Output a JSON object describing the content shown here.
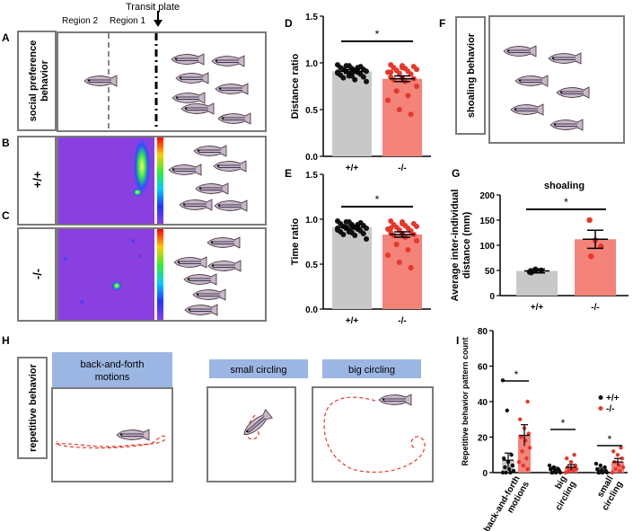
{
  "panels": {
    "A": "A",
    "B": "B",
    "C": "C",
    "D": "D",
    "E": "E",
    "F": "F",
    "G": "G",
    "H": "H",
    "I": "I"
  },
  "left": {
    "region2": "Region 2",
    "region1": "Region 1",
    "transit_plate": "Transit plate",
    "row_a_label": "social preference behavior",
    "row_b_label": "+/+",
    "row_c_label": "-/-"
  },
  "shoaling_box_label": "shoaling behavior",
  "repetitive": {
    "row_label": "repetitive behavior",
    "headers": [
      "back-and-forth\nmotions",
      "small circling",
      "big circling"
    ]
  },
  "colors": {
    "wt_bar": "#c8c8c8",
    "ko_bar": "#f4837a",
    "wt_point": "#111111",
    "ko_point": "#e8362a",
    "header_fill": "#9bb6e3",
    "heatmap_bg": "#8a3fe0"
  },
  "chart_data": [
    {
      "id": "D",
      "type": "bar",
      "title": "",
      "ylabel": "Distance ratio",
      "categories": [
        "+/+",
        "-/-"
      ],
      "ylim": [
        0,
        1.5
      ],
      "yticks": [
        "0.0",
        "0.5",
        "1.0",
        "1.5"
      ],
      "series": [
        {
          "values": [
            0.91,
            0.83
          ],
          "errors": [
            0.02,
            0.03
          ]
        }
      ],
      "points": [
        [
          0.98,
          0.97,
          0.96,
          0.95,
          0.94,
          0.93,
          0.93,
          0.92,
          0.91,
          0.91,
          0.9,
          0.89,
          0.88,
          0.88,
          0.87,
          0.86,
          0.85,
          0.84,
          0.82,
          0.8,
          0.97,
          0.95,
          0.9,
          0.86
        ],
        [
          0.98,
          0.97,
          0.96,
          0.95,
          0.94,
          0.93,
          0.92,
          0.91,
          0.9,
          0.89,
          0.88,
          0.85,
          0.84,
          0.83,
          0.82,
          0.8,
          0.75,
          0.7,
          0.65,
          0.6,
          0.5,
          0.45,
          0.9,
          0.95
        ]
      ],
      "significance": "*"
    },
    {
      "id": "E",
      "type": "bar",
      "title": "",
      "ylabel": "Time ratio",
      "categories": [
        "+/+",
        "-/-"
      ],
      "ylim": [
        0,
        1.5
      ],
      "yticks": [
        "0.0",
        "0.5",
        "1.0",
        "1.5"
      ],
      "series": [
        {
          "values": [
            0.91,
            0.83
          ],
          "errors": [
            0.02,
            0.03
          ]
        }
      ],
      "points": [
        [
          0.98,
          0.97,
          0.96,
          0.95,
          0.94,
          0.93,
          0.92,
          0.91,
          0.9,
          0.9,
          0.89,
          0.88,
          0.87,
          0.87,
          0.86,
          0.85,
          0.84,
          0.83,
          0.82,
          0.78,
          0.97,
          0.94,
          0.9,
          0.86
        ],
        [
          0.98,
          0.97,
          0.95,
          0.94,
          0.93,
          0.92,
          0.91,
          0.9,
          0.89,
          0.88,
          0.87,
          0.85,
          0.84,
          0.83,
          0.82,
          0.8,
          0.76,
          0.72,
          0.66,
          0.6,
          0.52,
          0.46,
          0.9,
          0.95
        ]
      ],
      "significance": "*"
    },
    {
      "id": "G",
      "type": "bar",
      "title": "shoaling",
      "ylabel": "Average inter-individual distance (mm)",
      "categories": [
        "+/+",
        "-/-"
      ],
      "ylim": [
        0,
        200
      ],
      "yticks": [
        "0",
        "50",
        "100",
        "150",
        "200"
      ],
      "series": [
        {
          "values": [
            49,
            112
          ],
          "errors": [
            4,
            18
          ]
        }
      ],
      "points": [
        [
          47,
          52,
          50,
          46
        ],
        [
          150,
          110,
          98,
          78
        ]
      ],
      "significance": "*"
    },
    {
      "id": "I",
      "type": "bar",
      "title": "",
      "ylabel": "Repetitive behavior pattern count",
      "categories": [
        "back-and-forth motions",
        "big circling",
        "small circling"
      ],
      "ylim": [
        0,
        80
      ],
      "yticks": [
        "0",
        "20",
        "40",
        "60",
        "80"
      ],
      "legend": [
        "+/+",
        "-/-"
      ],
      "legend_position": "top-right",
      "series": [
        {
          "name": "+/+",
          "values": [
            7,
            2,
            1.5
          ],
          "errors": [
            4,
            1,
            1
          ]
        },
        {
          "name": "-/-",
          "values": [
            21,
            3,
            6
          ],
          "errors": [
            6,
            1.5,
            2
          ]
        }
      ],
      "points": [
        [
          [
            52,
            35,
            10,
            8,
            6,
            4,
            3,
            2,
            1,
            0,
            0,
            0
          ],
          [
            40,
            30,
            25,
            22,
            20,
            18,
            14,
            12,
            8,
            6,
            4,
            2
          ]
        ],
        [
          [
            4,
            3,
            2,
            2,
            1,
            1,
            0,
            0,
            0,
            0
          ],
          [
            10,
            8,
            6,
            4,
            3,
            2,
            2,
            1,
            1,
            0
          ]
        ],
        [
          [
            5,
            4,
            3,
            2,
            1,
            1,
            0,
            0,
            0,
            0
          ],
          [
            14,
            12,
            10,
            8,
            6,
            4,
            3,
            2,
            1,
            0
          ]
        ]
      ],
      "significance": [
        "*",
        "*",
        "*"
      ]
    }
  ]
}
